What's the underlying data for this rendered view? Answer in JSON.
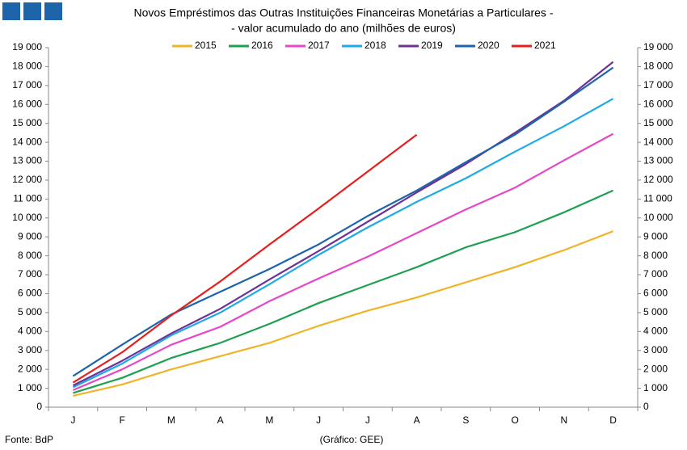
{
  "chart_data": {
    "type": "line",
    "title": "Novos Empréstimos das Outras Instituições Financeiras Monetárias a Particulares -",
    "subtitle": "- valor acumulado do ano (milhões de euros)",
    "source": "Fonte: BdP",
    "credit": "(Gráfico: GEE)",
    "categories": [
      "J",
      "F",
      "M",
      "A",
      "M",
      "J",
      "J",
      "A",
      "S",
      "O",
      "N",
      "D"
    ],
    "ylim": [
      0,
      19000
    ],
    "yticks": [
      0,
      {
        "value": 1000,
        "label": "1 000"
      },
      {
        "value": 2000,
        "label": "2 000"
      },
      {
        "value": 3000,
        "label": "3 000"
      },
      {
        "value": 4000,
        "label": "4 000"
      },
      {
        "value": 5000,
        "label": "5 000"
      },
      {
        "value": 6000,
        "label": "6 000"
      },
      {
        "value": 7000,
        "label": "7 000"
      },
      {
        "value": 8000,
        "label": "8 000"
      },
      {
        "value": 9000,
        "label": "9 000"
      },
      {
        "value": 10000,
        "label": "10 000"
      },
      {
        "value": 11000,
        "label": "11 000"
      },
      {
        "value": 12000,
        "label": "12 000"
      },
      {
        "value": 13000,
        "label": "13 000"
      },
      {
        "value": 14000,
        "label": "14 000"
      },
      {
        "value": 15000,
        "label": "15 000"
      },
      {
        "value": 16000,
        "label": "16 000"
      },
      {
        "value": 17000,
        "label": "17 000"
      },
      {
        "value": 18000,
        "label": "18 000"
      },
      {
        "value": 19000,
        "label": "19 000"
      }
    ],
    "grid": false,
    "legend": "top",
    "series": [
      {
        "name": "2015",
        "color": "#f0b428",
        "values": [
          600,
          1200,
          2000,
          2700,
          3400,
          4300,
          5100,
          5800,
          6600,
          7400,
          8300,
          9300
        ]
      },
      {
        "name": "2016",
        "color": "#1ea050",
        "values": [
          750,
          1550,
          2600,
          3400,
          4400,
          5500,
          6450,
          7400,
          8450,
          9250,
          10300,
          11450
        ]
      },
      {
        "name": "2017",
        "color": "#e646c8",
        "values": [
          900,
          2000,
          3300,
          4250,
          5600,
          6800,
          7950,
          9200,
          10450,
          11600,
          13050,
          14450
        ]
      },
      {
        "name": "2018",
        "color": "#1eaae6",
        "values": [
          1050,
          2300,
          3800,
          5000,
          6500,
          8050,
          9500,
          10850,
          12100,
          13500,
          14850,
          16300
        ]
      },
      {
        "name": "2019",
        "color": "#6e3296",
        "values": [
          1150,
          2450,
          3900,
          5200,
          6750,
          8250,
          9800,
          11350,
          12850,
          14500,
          16200,
          18250
        ]
      },
      {
        "name": "2020",
        "color": "#1e64aa",
        "values": [
          1650,
          3300,
          4900,
          6100,
          7300,
          8600,
          10100,
          11450,
          12950,
          14400,
          16150,
          17950
        ]
      },
      {
        "name": "2021",
        "color": "#e61e1e",
        "values": [
          1300,
          2900,
          4850,
          6650,
          8600,
          10500,
          12450,
          14400,
          null,
          null,
          null,
          null
        ]
      }
    ]
  }
}
